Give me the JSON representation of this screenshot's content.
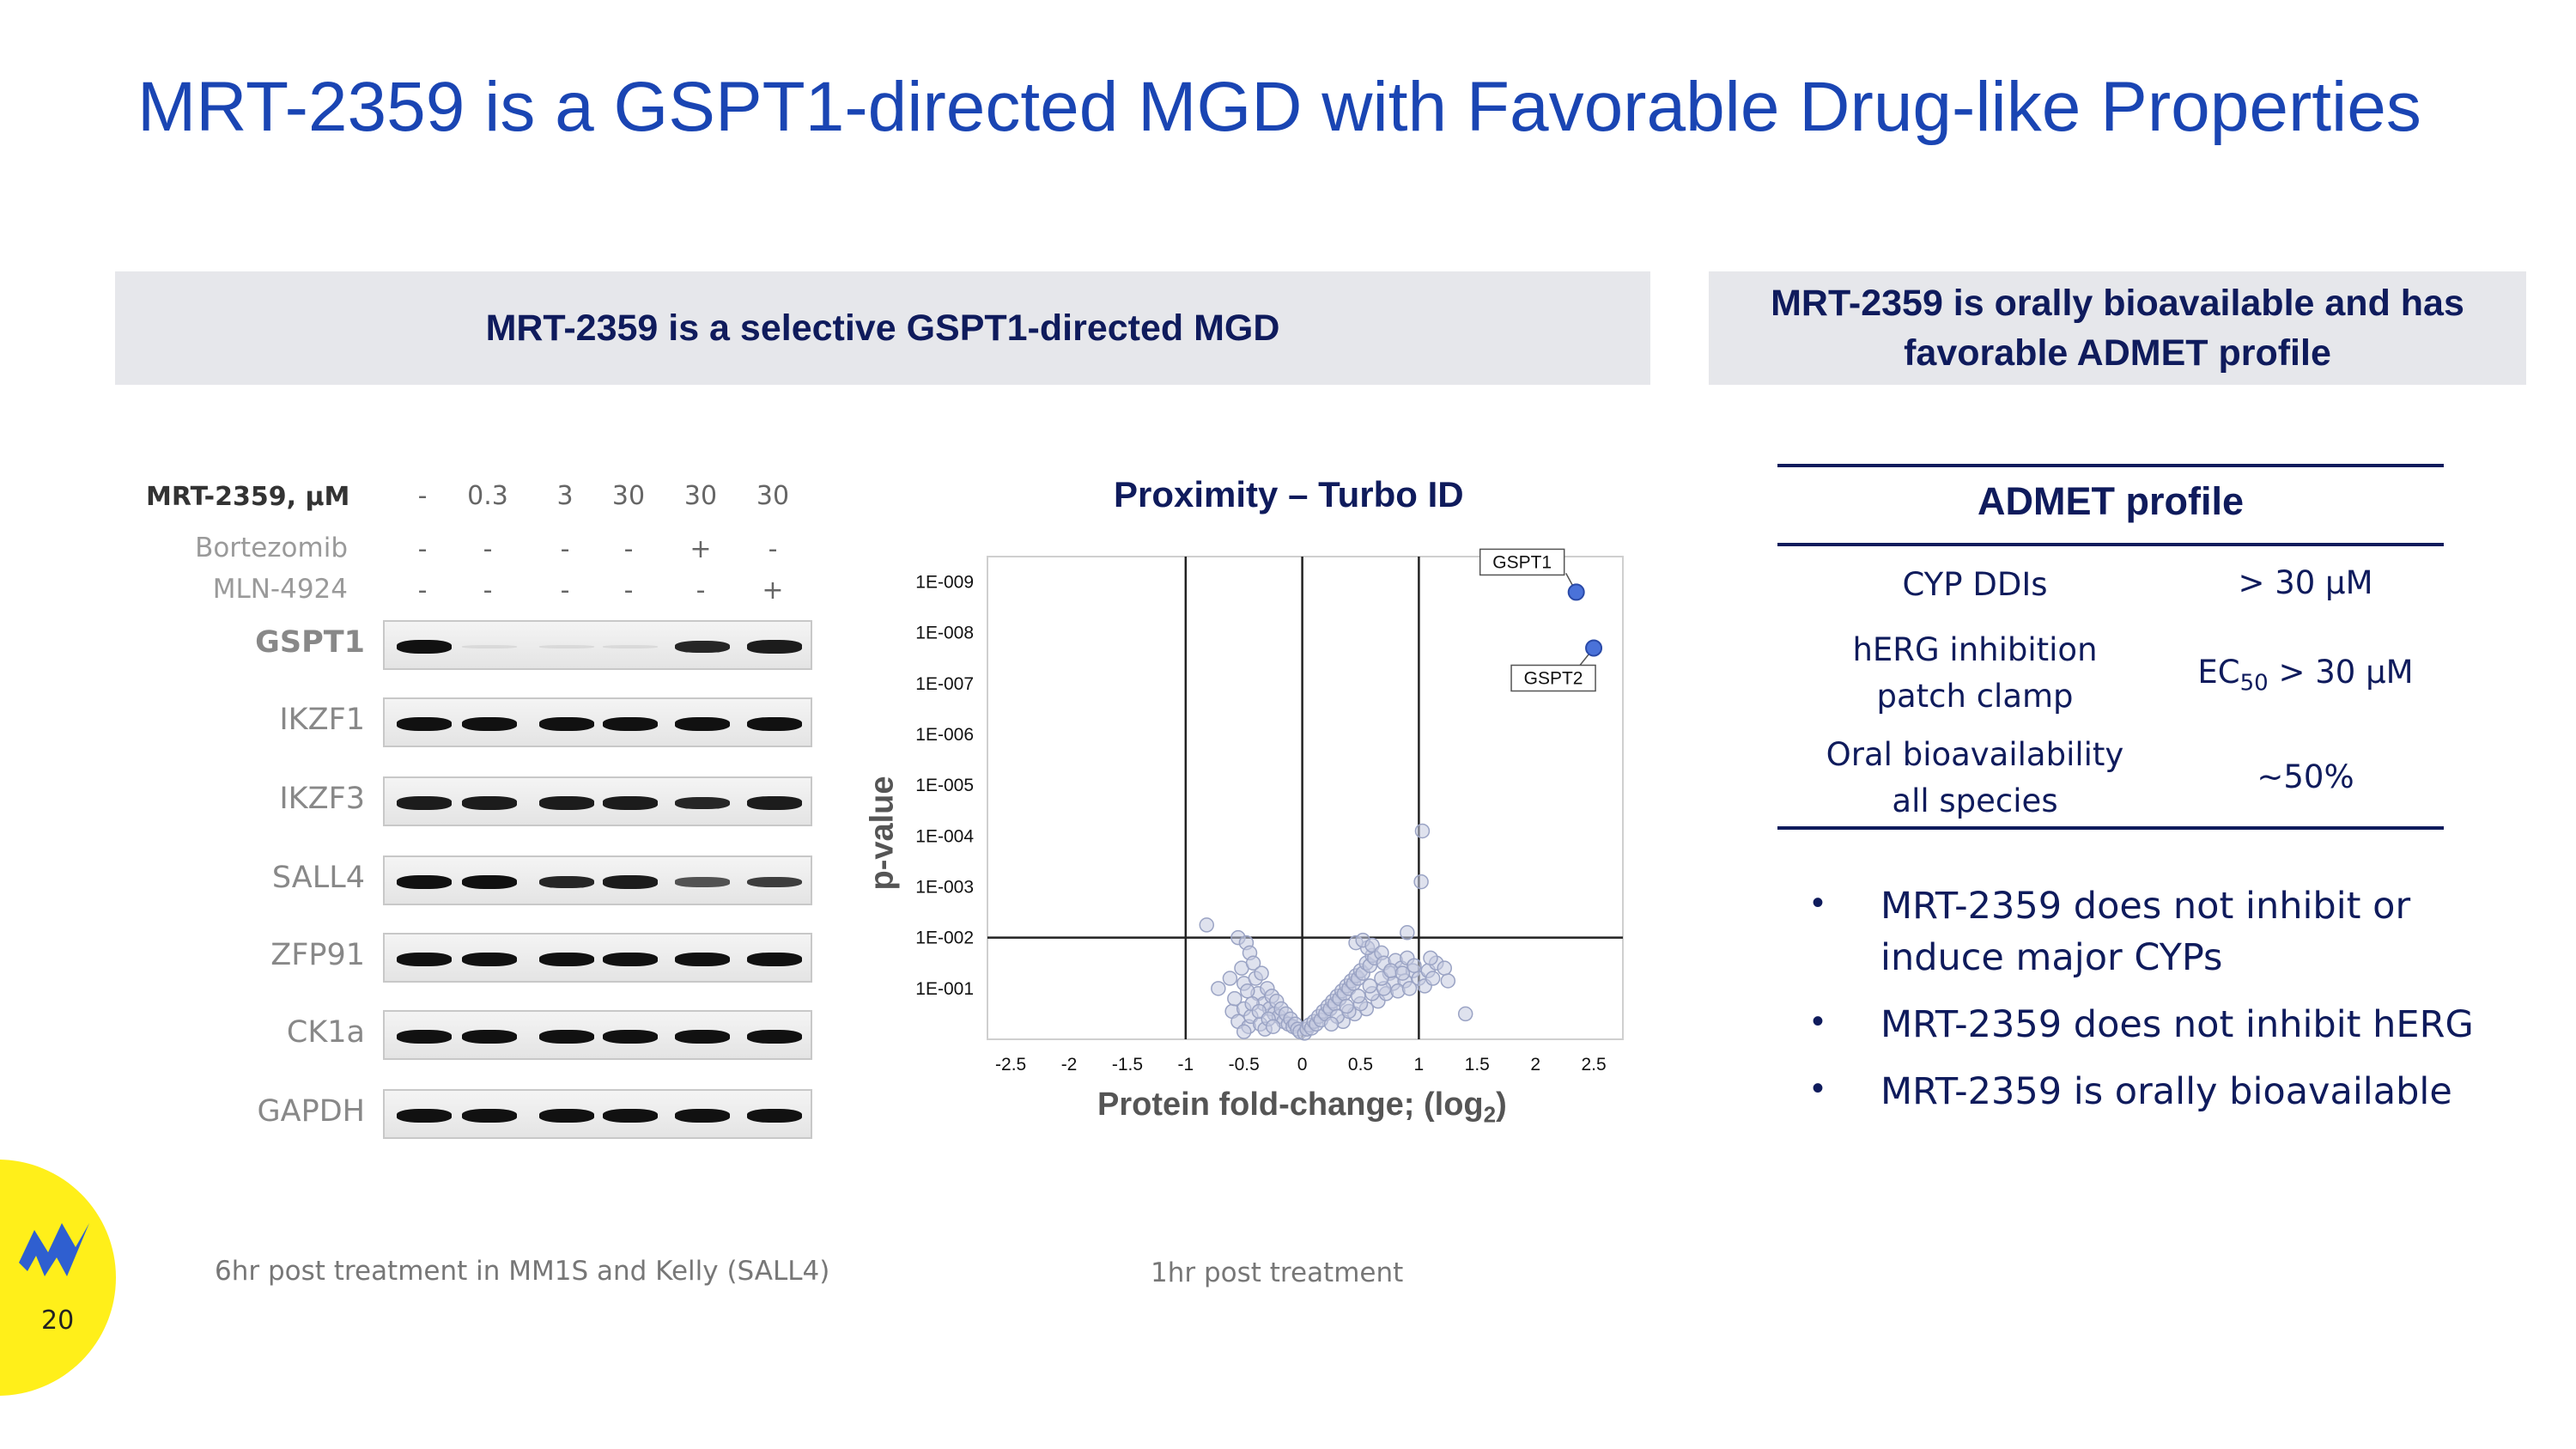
{
  "slide": {
    "title": "MRT-2359 is a GSPT1-directed MGD with Favorable Drug-like Properties",
    "page_number": "20"
  },
  "left_panel": {
    "header": "MRT-2359 is a selective GSPT1-directed MGD",
    "western_blot": {
      "dose_label": "MRT-2359, μM",
      "doses": [
        "-",
        "0.3",
        "3",
        "30",
        "30",
        "30"
      ],
      "conditions": [
        {
          "name": "Bortezomib",
          "values": [
            "-",
            "-",
            "-",
            "-",
            "+",
            "-"
          ]
        },
        {
          "name": "MLN-4924",
          "values": [
            "-",
            "-",
            "-",
            "-",
            "-",
            "+"
          ]
        }
      ],
      "proteins": [
        "GSPT1",
        "IKZF1",
        "IKZF3",
        "SALL4",
        "ZFP91",
        "CK1a",
        "GAPDH"
      ],
      "band_intensity": [
        [
          1.0,
          0.08,
          0.04,
          0.06,
          0.9,
          0.95
        ],
        [
          1,
          1,
          1,
          1,
          1,
          1
        ],
        [
          0.95,
          0.95,
          0.95,
          0.95,
          0.9,
          0.95
        ],
        [
          1,
          1,
          0.9,
          0.95,
          0.7,
          0.8
        ],
        [
          1,
          1,
          1,
          1,
          1,
          1
        ],
        [
          1,
          1,
          1,
          1,
          1,
          1
        ],
        [
          1,
          1,
          1,
          1,
          1,
          1
        ]
      ],
      "caption": "6hr post treatment in MM1S and Kelly (SALL4)"
    },
    "volcano": {
      "title": "Proximity – Turbo ID",
      "caption": "1hr post treatment"
    }
  },
  "right_panel": {
    "header": "MRT-2359 is orally bioavailable and has favorable ADMET profile",
    "table_title": "ADMET profile",
    "rows": [
      {
        "param": "CYP DDIs",
        "value": "> 30 μM"
      },
      {
        "param": "hERG inhibition patch clamp",
        "value_prefix": "EC",
        "value_sub": "50",
        "value_suffix": " > 30 μM"
      },
      {
        "param": "Oral bioavailability all species",
        "value": "~50%"
      }
    ],
    "bullets": [
      "MRT-2359 does not inhibit or induce major CYPs",
      "MRT-2359 does not inhibit hERG",
      "MRT-2359 is orally bioavailable"
    ]
  },
  "chart_data": {
    "type": "scatter",
    "title": "Proximity – Turbo ID",
    "xlabel": "Protein fold-change; (log",
    "xlabel_sub": "2",
    "xlabel_close": ")",
    "ylabel": "p-value",
    "xlim": [
      -2.7,
      2.75
    ],
    "x_ticks": [
      "-2.5",
      "-2",
      "-1.5",
      "-1",
      "-0.5",
      "0",
      "0.5",
      "1",
      "1.5",
      "2",
      "2.5"
    ],
    "x_tick_values": [
      -2.5,
      -2,
      -1.5,
      -1,
      -0.5,
      0,
      0.5,
      1,
      1.5,
      2,
      2.5
    ],
    "y_ticks": [
      "1E-009",
      "1E-008",
      "1E-007",
      "1E-006",
      "1E-005",
      "1E-004",
      "1E-003",
      "1E-002",
      "1E-001"
    ],
    "y_tick_values": [
      9,
      8,
      7,
      6,
      5,
      4,
      3,
      2,
      1
    ],
    "ylim_neglog10": [
      0,
      9.5
    ],
    "threshold_lines": {
      "x": [
        -1,
        0,
        1
      ],
      "y": [
        2
      ]
    },
    "highlighted": [
      {
        "name": "GSPT1",
        "x": 2.35,
        "y": 8.8,
        "color": "#4a72d9"
      },
      {
        "name": "GSPT2",
        "x": 2.5,
        "y": 7.7,
        "color": "#4a72d9"
      }
    ],
    "series": [
      {
        "color": "#c5cbe0",
        "points": [
          [
            -0.82,
            2.25
          ],
          [
            -0.72,
            1.0
          ],
          [
            -0.55,
            2.0
          ],
          [
            -0.48,
            1.9
          ],
          [
            -0.45,
            1.7
          ],
          [
            -0.52,
            1.4
          ],
          [
            -0.5,
            1.1
          ],
          [
            -0.42,
            1.5
          ],
          [
            -0.4,
            1.2
          ],
          [
            -0.38,
            0.9
          ],
          [
            -0.35,
            1.3
          ],
          [
            -0.33,
            0.7
          ],
          [
            -0.3,
            1.0
          ],
          [
            -0.28,
            0.6
          ],
          [
            -0.26,
            0.85
          ],
          [
            -0.24,
            0.5
          ],
          [
            -0.22,
            0.75
          ],
          [
            -0.2,
            0.45
          ],
          [
            -0.18,
            0.6
          ],
          [
            -0.16,
            0.35
          ],
          [
            -0.14,
            0.5
          ],
          [
            -0.12,
            0.3
          ],
          [
            -0.1,
            0.4
          ],
          [
            -0.08,
            0.25
          ],
          [
            -0.06,
            0.3
          ],
          [
            -0.04,
            0.2
          ],
          [
            -0.02,
            0.15
          ],
          [
            -0.6,
            0.55
          ],
          [
            -0.58,
            0.8
          ],
          [
            -0.55,
            0.35
          ],
          [
            -0.5,
            0.6
          ],
          [
            -0.46,
            0.25
          ],
          [
            -0.44,
            0.45
          ],
          [
            -0.36,
            0.3
          ],
          [
            -0.32,
            0.2
          ],
          [
            -0.62,
            1.2
          ],
          [
            -0.47,
            0.95
          ],
          [
            -0.43,
            0.7
          ],
          [
            -0.37,
            0.55
          ],
          [
            -0.29,
            0.4
          ],
          [
            -0.25,
            0.25
          ],
          [
            -0.5,
            0.15
          ],
          [
            0.02,
            0.12
          ],
          [
            0.04,
            0.2
          ],
          [
            0.06,
            0.28
          ],
          [
            0.08,
            0.22
          ],
          [
            0.1,
            0.35
          ],
          [
            0.12,
            0.3
          ],
          [
            0.14,
            0.45
          ],
          [
            0.16,
            0.38
          ],
          [
            0.18,
            0.55
          ],
          [
            0.2,
            0.5
          ],
          [
            0.22,
            0.65
          ],
          [
            0.24,
            0.6
          ],
          [
            0.26,
            0.75
          ],
          [
            0.28,
            0.7
          ],
          [
            0.3,
            0.85
          ],
          [
            0.32,
            0.8
          ],
          [
            0.34,
            0.95
          ],
          [
            0.36,
            0.9
          ],
          [
            0.38,
            1.05
          ],
          [
            0.4,
            1.0
          ],
          [
            0.42,
            1.15
          ],
          [
            0.44,
            1.1
          ],
          [
            0.46,
            1.25
          ],
          [
            0.48,
            1.2
          ],
          [
            0.5,
            1.35
          ],
          [
            0.52,
            1.3
          ],
          [
            0.55,
            1.5
          ],
          [
            0.58,
            1.45
          ],
          [
            0.6,
            1.65
          ],
          [
            0.62,
            1.6
          ],
          [
            0.56,
            1.8
          ],
          [
            0.46,
            1.9
          ],
          [
            0.52,
            1.95
          ],
          [
            0.6,
            1.85
          ],
          [
            0.68,
            1.7
          ],
          [
            0.7,
            1.5
          ],
          [
            0.75,
            1.3
          ],
          [
            0.8,
            1.55
          ],
          [
            0.85,
            1.4
          ],
          [
            0.9,
            1.6
          ],
          [
            0.95,
            1.35
          ],
          [
            0.78,
            1.1
          ],
          [
            0.88,
            1.15
          ],
          [
            1.0,
            1.2
          ],
          [
            1.05,
            1.05
          ],
          [
            0.35,
            0.35
          ],
          [
            0.45,
            0.5
          ],
          [
            0.55,
            0.6
          ],
          [
            0.65,
            0.75
          ],
          [
            0.72,
            0.9
          ],
          [
            0.82,
            0.95
          ],
          [
            0.92,
            1.0
          ],
          [
            0.3,
            0.45
          ],
          [
            0.4,
            0.55
          ],
          [
            0.5,
            0.7
          ],
          [
            0.6,
            0.9
          ],
          [
            0.7,
            1.0
          ],
          [
            0.25,
            0.3
          ],
          [
            0.38,
            0.65
          ],
          [
            0.48,
            0.85
          ],
          [
            0.58,
            1.05
          ],
          [
            0.68,
            1.2
          ],
          [
            0.76,
            1.35
          ],
          [
            0.86,
            1.3
          ],
          [
            0.96,
            1.45
          ],
          [
            1.08,
            1.35
          ],
          [
            1.12,
            1.2
          ],
          [
            1.15,
            1.5
          ],
          [
            1.22,
            1.4
          ],
          [
            1.25,
            1.15
          ],
          [
            1.4,
            0.5
          ],
          [
            0.9,
            2.1
          ],
          [
            1.02,
            3.1
          ],
          [
            1.03,
            4.1
          ],
          [
            1.1,
            1.6
          ]
        ]
      }
    ]
  }
}
